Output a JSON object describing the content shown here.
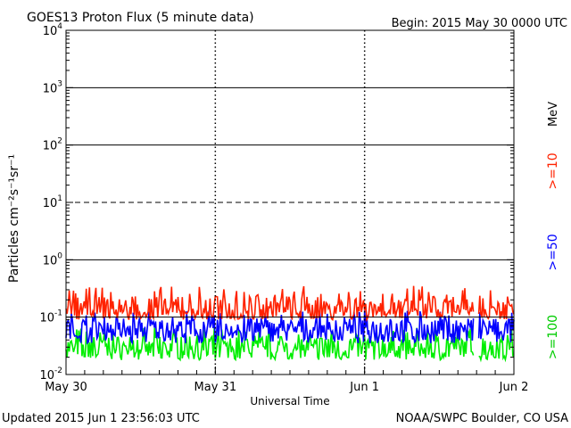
{
  "header": {
    "title": "GOES13 Proton Flux (5 minute data)",
    "begin": "Begin: 2015 May 30 0000 UTC"
  },
  "footer": {
    "updated": "Updated 2015 Jun  1 23:56:03 UTC",
    "source": "NOAA/SWPC Boulder, CO USA"
  },
  "right_labels": {
    "unit": "MeV",
    "ch10": ">=10",
    "ch50": ">=50",
    "ch100": ">=100"
  },
  "colors": {
    "ch10": "#ff2200",
    "ch50": "#0000ff",
    "ch100": "#00ee00",
    "axis": "#000000"
  },
  "chart_data": {
    "type": "line",
    "title": "GOES13 Proton Flux (5 minute data)",
    "xlabel": "Universal Time",
    "ylabel": "Particles cm⁻²s⁻¹sr⁻¹",
    "y_scale": "log",
    "ylim": [
      0.01,
      10000
    ],
    "xlim_days": [
      0,
      3
    ],
    "x_ticks": [
      "May 30",
      "May 31",
      "Jun 1",
      "Jun 2"
    ],
    "y_ticks": [
      {
        "base": "10",
        "exp": "-2"
      },
      {
        "base": "10",
        "exp": "-1"
      },
      {
        "base": "10",
        "exp": "0"
      },
      {
        "base": "10",
        "exp": "1"
      },
      {
        "base": "10",
        "exp": "2"
      },
      {
        "base": "10",
        "exp": "3"
      },
      {
        "base": "10",
        "exp": "4"
      }
    ],
    "threshold_lines": [
      0.1,
      1,
      100,
      1000
    ],
    "dashed_lines": [
      10
    ],
    "data_gap_days": [
      2.73,
      2.76
    ],
    "series": [
      {
        "name": ">=10 MeV",
        "color": "#ff2200",
        "typical": 0.13,
        "min": 0.09,
        "max": 0.35
      },
      {
        "name": ">=50 MeV",
        "color": "#0000ff",
        "typical": 0.06,
        "min": 0.035,
        "max": 0.13
      },
      {
        "name": ">=100 MeV",
        "color": "#00ee00",
        "typical": 0.028,
        "min": 0.018,
        "max": 0.065
      }
    ]
  }
}
